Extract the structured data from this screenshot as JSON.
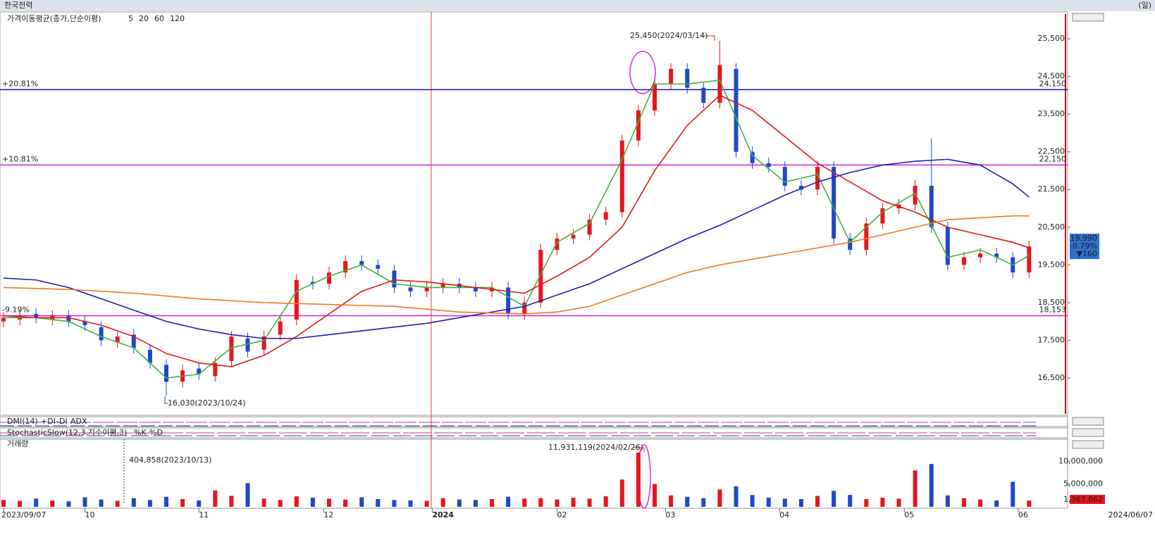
{
  "chart_data": {
    "type": "candlestick",
    "title": "한국전력",
    "period": "(일)",
    "ma_title": "가격이동평균(종가,단순이평)",
    "xlim": [
      -0.65,
      196.1
    ],
    "ylim": [
      15510,
      26210
    ],
    "yticks": [
      {
        "value": 16500,
        "label": "16,500"
      },
      {
        "value": 17500,
        "label": "17,500"
      },
      {
        "value": 18500,
        "label": "18,500"
      },
      {
        "value": 19500,
        "label": "19,500"
      },
      {
        "value": 20500,
        "label": "20,500"
      },
      {
        "value": 21500,
        "label": "21,500"
      },
      {
        "value": 22500,
        "label": "22,500"
      },
      {
        "value": 23500,
        "label": "23,500"
      },
      {
        "value": 24500,
        "label": "24,500"
      },
      {
        "value": 25500,
        "label": "25,500"
      }
    ],
    "xticks": [
      {
        "value": 0,
        "label": "2023/09/07"
      },
      {
        "value": 15,
        "label": "10"
      },
      {
        "value": 36,
        "label": "11"
      },
      {
        "value": 59,
        "label": "12"
      },
      {
        "value": 79,
        "label": "2024"
      },
      {
        "value": 102,
        "label": "02"
      },
      {
        "value": 122,
        "label": "03"
      },
      {
        "value": 143,
        "label": "04"
      },
      {
        "value": 166,
        "label": "05"
      },
      {
        "value": 187,
        "label": "06"
      }
    ],
    "end_label": "2024/06/07",
    "candles": {
      "x": [
        0,
        3,
        6,
        9,
        12,
        15,
        18,
        21,
        24,
        27,
        30,
        33,
        36,
        39,
        42,
        45,
        48,
        51,
        54,
        57,
        60,
        63,
        66,
        69,
        72,
        75,
        78,
        81,
        84,
        87,
        90,
        93,
        96,
        99,
        102,
        105,
        108,
        111,
        114,
        117,
        120,
        123,
        126,
        129,
        132,
        135,
        138,
        141,
        144,
        147,
        150,
        153,
        156,
        159,
        162,
        165,
        168,
        171,
        174,
        177,
        180,
        183,
        186,
        189
      ],
      "open": [
        18000,
        18050,
        18200,
        18050,
        18150,
        18000,
        17850,
        17450,
        17650,
        17250,
        16850,
        16400,
        16750,
        16550,
        16950,
        17550,
        17250,
        17650,
        18050,
        19050,
        19000,
        19300,
        19600,
        19500,
        19350,
        18900,
        18800,
        18900,
        19000,
        18900,
        18800,
        18900,
        18200,
        18500,
        19900,
        20200,
        20300,
        20700,
        20900,
        22800,
        23600,
        24300,
        24700,
        24200,
        23800,
        24700,
        22500,
        22200,
        22100,
        21600,
        21500,
        22100,
        20200,
        19900,
        20600,
        21000,
        21100,
        21600,
        20500,
        19500,
        19700,
        19800,
        19700,
        19300
      ],
      "high": [
        18250,
        18300,
        18350,
        18300,
        18300,
        18150,
        18000,
        17750,
        17800,
        17400,
        17000,
        16850,
        16900,
        17050,
        17750,
        17700,
        17750,
        18150,
        19250,
        19200,
        19450,
        19750,
        19750,
        19650,
        19500,
        19050,
        19050,
        19150,
        19150,
        19050,
        19050,
        19050,
        18650,
        20050,
        20350,
        20450,
        20850,
        21050,
        22950,
        23750,
        24450,
        24850,
        24850,
        24350,
        25450,
        24850,
        22650,
        22350,
        22250,
        21750,
        22250,
        22250,
        20350,
        20750,
        21150,
        21250,
        21750,
        22850,
        20650,
        19850,
        19950,
        19950,
        19850,
        20140
      ],
      "low": [
        17850,
        17900,
        17950,
        17900,
        17850,
        17750,
        17350,
        17300,
        17150,
        16750,
        16030,
        16250,
        16450,
        16400,
        16800,
        17050,
        17100,
        17500,
        17900,
        18850,
        18850,
        19150,
        19350,
        19250,
        18750,
        18650,
        18650,
        18750,
        18750,
        18650,
        18650,
        18050,
        18050,
        18350,
        19750,
        20050,
        20150,
        20550,
        20750,
        22650,
        23450,
        24150,
        24050,
        23650,
        23650,
        22350,
        22050,
        21950,
        21450,
        21350,
        21350,
        20050,
        19750,
        19750,
        20450,
        20850,
        20950,
        20350,
        19350,
        19350,
        19550,
        19550,
        19150,
        19150
      ],
      "close": [
        18100,
        18150,
        18100,
        18150,
        18000,
        17900,
        17500,
        17600,
        17300,
        16900,
        16400,
        16700,
        16600,
        16900,
        17600,
        17200,
        17600,
        18000,
        19100,
        19000,
        19300,
        19600,
        19500,
        19400,
        18900,
        18800,
        18900,
        19000,
        18900,
        18800,
        18900,
        18200,
        18500,
        19900,
        20200,
        20300,
        20700,
        20900,
        22800,
        23600,
        24300,
        24700,
        24200,
        23800,
        24800,
        22500,
        22200,
        22100,
        21600,
        21500,
        22100,
        20200,
        19900,
        20600,
        21000,
        21100,
        21600,
        20500,
        19500,
        19700,
        19800,
        19700,
        19300,
        19990
      ],
      "up_color": "#e8141c",
      "down_color": "#1f48c8"
    },
    "moving_averages": [
      {
        "name": "5",
        "color": "#3cb43c",
        "x": [
          0,
          6,
          12,
          18,
          24,
          30,
          36,
          42,
          48,
          54,
          60,
          66,
          72,
          78,
          84,
          90,
          96,
          102,
          108,
          114,
          120,
          126,
          132,
          138,
          144,
          150,
          156,
          162,
          168,
          174,
          180,
          186,
          189
        ],
        "values": [
          18100,
          18100,
          18000,
          17600,
          17300,
          16500,
          16600,
          17300,
          17500,
          18800,
          19200,
          19500,
          19000,
          18900,
          18900,
          18900,
          18400,
          20100,
          20600,
          22300,
          24300,
          24300,
          24400,
          22400,
          21700,
          21900,
          20100,
          20900,
          21400,
          19700,
          19900,
          19500,
          19750
        ]
      },
      {
        "name": "20",
        "color": "#e01818",
        "x": [
          0,
          6,
          12,
          18,
          24,
          30,
          36,
          42,
          48,
          54,
          60,
          66,
          72,
          78,
          84,
          90,
          96,
          102,
          108,
          114,
          120,
          126,
          132,
          138,
          144,
          150,
          156,
          162,
          168,
          174,
          180,
          186,
          189
        ],
        "values": [
          18150,
          18100,
          18100,
          17900,
          17600,
          17150,
          16900,
          16800,
          17100,
          17600,
          18200,
          18800,
          19100,
          19050,
          18950,
          18850,
          18750,
          19200,
          19700,
          20500,
          22000,
          23200,
          24000,
          23600,
          22900,
          22200,
          21700,
          21200,
          20900,
          20500,
          20300,
          20100,
          19950
        ]
      },
      {
        "name": "60",
        "color": "#1c1cb4",
        "x": [
          0,
          6,
          12,
          18,
          24,
          30,
          36,
          42,
          48,
          54,
          60,
          66,
          72,
          78,
          84,
          90,
          96,
          102,
          108,
          114,
          120,
          126,
          132,
          138,
          144,
          150,
          156,
          162,
          168,
          174,
          180,
          186,
          189
        ],
        "values": [
          19150,
          19100,
          18900,
          18600,
          18300,
          18000,
          17800,
          17650,
          17550,
          17550,
          17650,
          17750,
          17850,
          17950,
          18100,
          18250,
          18400,
          18700,
          19000,
          19400,
          19800,
          20200,
          20550,
          20950,
          21350,
          21700,
          21950,
          22150,
          22250,
          22300,
          22150,
          21650,
          21300
        ]
      },
      {
        "name": "120",
        "color": "#f07820",
        "x": [
          0,
          12,
          24,
          36,
          48,
          60,
          72,
          84,
          96,
          102,
          108,
          114,
          120,
          126,
          132,
          138,
          144,
          150,
          156,
          162,
          168,
          174,
          180,
          186,
          189
        ],
        "values": [
          18900,
          18850,
          18750,
          18600,
          18500,
          18450,
          18400,
          18250,
          18200,
          18250,
          18400,
          18700,
          19000,
          19300,
          19500,
          19650,
          19800,
          19950,
          20100,
          20300,
          20500,
          20700,
          20750,
          20800,
          20800
        ]
      }
    ],
    "levels": [
      {
        "value": 24150,
        "label": "+20.81%",
        "price_label": "24,150",
        "color": "#1010c0"
      },
      {
        "value": 22150,
        "label": "+10.81%",
        "price_label": "22,150",
        "color": "#d020d0"
      },
      {
        "value": 18153,
        "label": "-9.19%",
        "price_label": "18,153",
        "color": "#d020d0"
      }
    ],
    "annotations": {
      "high": "25,450(2024/03/14)",
      "low": "16,030(2023/10/24)",
      "volume_high": "11,931,119(2024/02/26)",
      "volume_low": "404,858(2023/10/13)"
    },
    "last": {
      "price": "19,990",
      "change_pct": "-0.79%",
      "change": "▼160"
    },
    "dmi": {
      "title": "DMI(14)",
      "pdi": "+DI",
      "mdi": "-DI",
      "adx": "ADX"
    },
    "stochastic": {
      "title": "StochasticSlow(12,3,지수이평,3)",
      "k": "%K",
      "d": "%D"
    },
    "volume": {
      "title": "거래량",
      "values": [
        1500000,
        1300000,
        1800000,
        1400000,
        1200000,
        2100000,
        1600000,
        1300000,
        1900000,
        1500000,
        2200000,
        1700000,
        1400000,
        3600000,
        2400000,
        5200000,
        1800000,
        1500000,
        2300000,
        2000000,
        1800000,
        1600000,
        2100000,
        1700000,
        1500000,
        1400000,
        1300000,
        1900000,
        1600000,
        1500000,
        1700000,
        2200000,
        1800000,
        1900000,
        1600000,
        2000000,
        1800000,
        2300000,
        6000000,
        11931119,
        5000000,
        2500000,
        2200000,
        1900000,
        3800000,
        4500000,
        2600000,
        2000000,
        1800000,
        1700000,
        2400000,
        3500000,
        2600000,
        1700000,
        2000000,
        1800000,
        8000000,
        9400000,
        2500000,
        1900000,
        1600000,
        1400000,
        5500000,
        1363862
      ],
      "last_label": "1,363,862",
      "ylim": [
        0,
        14840000
      ],
      "yticks": [
        {
          "value": 5000000,
          "label": "5,000,000"
        },
        {
          "value": 10000000,
          "label": "10,000,000"
        }
      ]
    }
  }
}
